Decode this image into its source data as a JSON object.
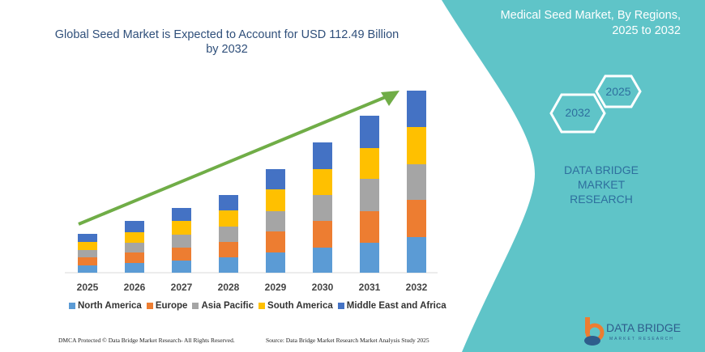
{
  "chart_data": {
    "type": "bar",
    "stacked": true,
    "title": "Global Seed Market is Expected to Account for USD 112.49 Billion by 2032",
    "categories": [
      "2025",
      "2026",
      "2027",
      "2028",
      "2029",
      "2030",
      "2031",
      "2032"
    ],
    "series": [
      {
        "name": "North America",
        "color": "#5b9bd5",
        "values": [
          4.5,
          6,
          7.5,
          9.5,
          12.5,
          15.5,
          18.5,
          22
        ]
      },
      {
        "name": "Europe",
        "color": "#ed7d31",
        "values": [
          5,
          6.5,
          8,
          9.5,
          13,
          16.5,
          19.5,
          23
        ]
      },
      {
        "name": "Asia Pacific",
        "color": "#a5a5a5",
        "values": [
          4.5,
          6,
          8,
          9.5,
          12.5,
          16,
          20,
          22
        ]
      },
      {
        "name": "South America",
        "color": "#ffc000",
        "values": [
          5,
          6.5,
          8.5,
          10,
          13.5,
          16,
          19,
          23
        ]
      },
      {
        "name": "Middle East and Africa",
        "color": "#4472c4",
        "values": [
          5,
          7,
          8,
          9.5,
          12.5,
          16.5,
          20,
          22.5
        ]
      }
    ],
    "ylim": [
      0,
      112.5
    ],
    "y_axis_shown": false,
    "grid": false,
    "legend_position": "bottom",
    "trend_arrow_color": "#70ad47"
  },
  "side_panel": {
    "title_line1": "Medical Seed Market, By Regions,",
    "title_line2": "2025 to 2032",
    "hex_2025": "2025",
    "hex_2032": "2032",
    "brand_line1": "DATA BRIDGE MARKET",
    "brand_line2": "RESEARCH",
    "color": "#5fc4c8"
  },
  "footer": {
    "copyright": "DMCA Protected © Data Bridge Market Research- All Rights Reserved.",
    "source": "Source: Data Bridge Market Research Market Analysis Study 2025"
  },
  "logo": {
    "name": "DATA BRIDGE",
    "tagline": "MARKET RESEARCH"
  }
}
